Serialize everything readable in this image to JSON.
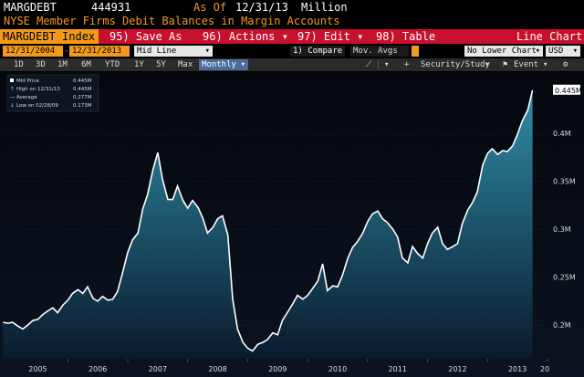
{
  "header": {
    "ticker": "MARGDEBT",
    "last_value": "444931",
    "as_of_label": "As Of",
    "as_of_date": "12/31/13",
    "unit": "Million",
    "description": "NYSE Member Firms Debit Balances in Margin Accounts"
  },
  "menu": {
    "security": "MARGDEBT Index",
    "items": [
      {
        "key": "95)",
        "label": "Save As"
      },
      {
        "key": "96)",
        "label": "Actions",
        "arrow": "▾"
      },
      {
        "key": "97)",
        "label": "Edit",
        "arrow": "▾"
      },
      {
        "key": "98)",
        "label": "Table"
      }
    ],
    "right_label": "Line Chart"
  },
  "fields": {
    "start_date": "12/31/2004",
    "end_date": "12/31/2013",
    "chart_style": "Mid Line",
    "compare": "1) Compare",
    "mov_avgs": "Mov. Avgs",
    "lower_chart": "No Lower Chart",
    "currency": "USD"
  },
  "toolbar": {
    "periods": [
      "1D",
      "3D",
      "1M",
      "6M",
      "YTD",
      "1Y",
      "5Y",
      "Max"
    ],
    "frequency": "Monthly",
    "security_study": "Security/Study",
    "event": "Event"
  },
  "legend": {
    "entries": [
      {
        "label": "Mid Price",
        "value": "0.445M"
      },
      {
        "label": "High on 12/31/13",
        "value": "0.445M"
      },
      {
        "label": "Average",
        "value": "0.277M"
      },
      {
        "label": "Low on 02/28/09",
        "value": "0.173M"
      }
    ]
  },
  "colors": {
    "accent_orange": "#f39a1b",
    "menu_red": "#c8102e",
    "line": "#ffffff",
    "fill_top": "#2f8ea6",
    "fill_bottom": "#0a1a2e"
  },
  "chart_data": {
    "type": "area",
    "title": "",
    "xlabel": "",
    "ylabel": "",
    "x_ticks": [
      "2005",
      "2006",
      "2007",
      "2008",
      "2009",
      "2010",
      "2011",
      "2012",
      "2013",
      "20"
    ],
    "y_ticks": [
      "0.2M",
      "0.25M",
      "0.3M",
      "0.35M",
      "0.4M"
    ],
    "ylim": [
      0.165,
      0.46
    ],
    "xlim": [
      2004.9,
      2014.0
    ],
    "last_value_label": "0.445M",
    "series": [
      {
        "values": [
          [
            2004.92,
            0.203
          ],
          [
            2005.0,
            0.202
          ],
          [
            2005.08,
            0.203
          ],
          [
            2005.17,
            0.199
          ],
          [
            2005.25,
            0.196
          ],
          [
            2005.33,
            0.2
          ],
          [
            2005.42,
            0.205
          ],
          [
            2005.5,
            0.206
          ],
          [
            2005.58,
            0.211
          ],
          [
            2005.67,
            0.215
          ],
          [
            2005.75,
            0.218
          ],
          [
            2005.83,
            0.213
          ],
          [
            2005.92,
            0.221
          ],
          [
            2006.0,
            0.226
          ],
          [
            2006.08,
            0.233
          ],
          [
            2006.17,
            0.237
          ],
          [
            2006.25,
            0.233
          ],
          [
            2006.33,
            0.24
          ],
          [
            2006.42,
            0.228
          ],
          [
            2006.5,
            0.225
          ],
          [
            2006.58,
            0.23
          ],
          [
            2006.67,
            0.226
          ],
          [
            2006.75,
            0.227
          ],
          [
            2006.83,
            0.235
          ],
          [
            2006.92,
            0.256
          ],
          [
            2007.0,
            0.276
          ],
          [
            2007.08,
            0.289
          ],
          [
            2007.17,
            0.296
          ],
          [
            2007.25,
            0.321
          ],
          [
            2007.33,
            0.336
          ],
          [
            2007.42,
            0.362
          ],
          [
            2007.5,
            0.38
          ],
          [
            2007.58,
            0.352
          ],
          [
            2007.67,
            0.331
          ],
          [
            2007.75,
            0.331
          ],
          [
            2007.83,
            0.345
          ],
          [
            2007.92,
            0.33
          ],
          [
            2008.0,
            0.322
          ],
          [
            2008.08,
            0.33
          ],
          [
            2008.17,
            0.323
          ],
          [
            2008.25,
            0.312
          ],
          [
            2008.33,
            0.296
          ],
          [
            2008.42,
            0.302
          ],
          [
            2008.5,
            0.311
          ],
          [
            2008.58,
            0.314
          ],
          [
            2008.67,
            0.294
          ],
          [
            2008.75,
            0.227
          ],
          [
            2008.83,
            0.196
          ],
          [
            2008.92,
            0.182
          ],
          [
            2009.0,
            0.176
          ],
          [
            2009.08,
            0.173
          ],
          [
            2009.17,
            0.18
          ],
          [
            2009.25,
            0.182
          ],
          [
            2009.33,
            0.185
          ],
          [
            2009.42,
            0.192
          ],
          [
            2009.5,
            0.19
          ],
          [
            2009.58,
            0.205
          ],
          [
            2009.67,
            0.214
          ],
          [
            2009.75,
            0.222
          ],
          [
            2009.83,
            0.231
          ],
          [
            2009.92,
            0.227
          ],
          [
            2010.0,
            0.231
          ],
          [
            2010.08,
            0.238
          ],
          [
            2010.17,
            0.246
          ],
          [
            2010.25,
            0.264
          ],
          [
            2010.33,
            0.236
          ],
          [
            2010.42,
            0.241
          ],
          [
            2010.5,
            0.24
          ],
          [
            2010.58,
            0.252
          ],
          [
            2010.67,
            0.27
          ],
          [
            2010.75,
            0.281
          ],
          [
            2010.83,
            0.287
          ],
          [
            2010.92,
            0.296
          ],
          [
            2011.0,
            0.308
          ],
          [
            2011.08,
            0.316
          ],
          [
            2011.17,
            0.319
          ],
          [
            2011.25,
            0.311
          ],
          [
            2011.33,
            0.307
          ],
          [
            2011.42,
            0.3
          ],
          [
            2011.5,
            0.292
          ],
          [
            2011.58,
            0.27
          ],
          [
            2011.67,
            0.265
          ],
          [
            2011.75,
            0.282
          ],
          [
            2011.83,
            0.275
          ],
          [
            2011.92,
            0.27
          ],
          [
            2012.0,
            0.285
          ],
          [
            2012.08,
            0.296
          ],
          [
            2012.17,
            0.302
          ],
          [
            2012.25,
            0.285
          ],
          [
            2012.33,
            0.279
          ],
          [
            2012.42,
            0.282
          ],
          [
            2012.5,
            0.285
          ],
          [
            2012.58,
            0.306
          ],
          [
            2012.67,
            0.32
          ],
          [
            2012.75,
            0.328
          ],
          [
            2012.83,
            0.339
          ],
          [
            2012.92,
            0.367
          ],
          [
            2013.0,
            0.379
          ],
          [
            2013.08,
            0.384
          ],
          [
            2013.17,
            0.378
          ],
          [
            2013.25,
            0.382
          ],
          [
            2013.33,
            0.381
          ],
          [
            2013.42,
            0.387
          ],
          [
            2013.5,
            0.399
          ],
          [
            2013.58,
            0.413
          ],
          [
            2013.67,
            0.424
          ],
          [
            2013.75,
            0.445
          ]
        ]
      }
    ]
  }
}
